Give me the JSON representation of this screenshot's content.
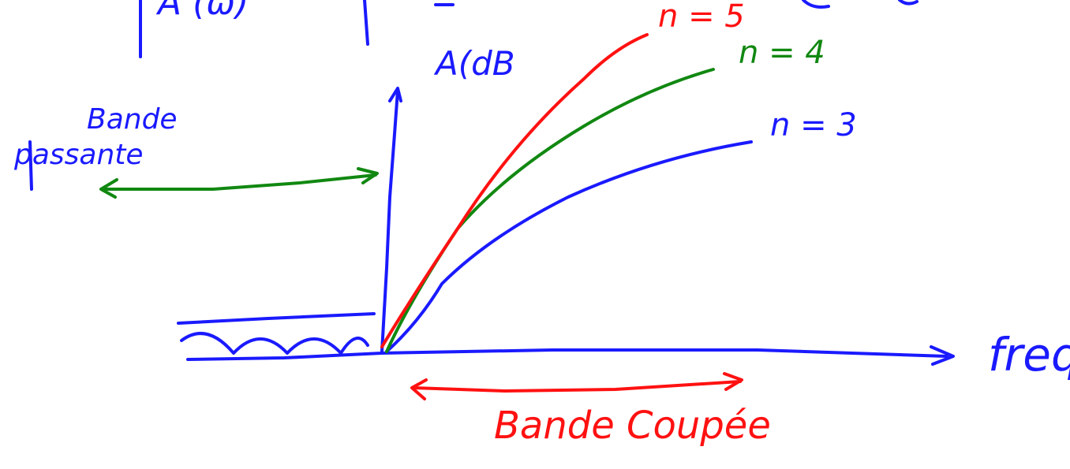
{
  "colors": {
    "blue": "#1a1aff",
    "green": "#118811",
    "red": "#ff1111"
  },
  "labels": {
    "top_fragment": "A (ω)",
    "y_axis": "A(dB",
    "x_axis": "freq",
    "passband_word1": "Bande",
    "passband_word2": "passante",
    "stopband": "Bande Coupée",
    "curve_n5": "n = 5",
    "curve_n4": "n = 4",
    "curve_n3": "n = 3"
  }
}
